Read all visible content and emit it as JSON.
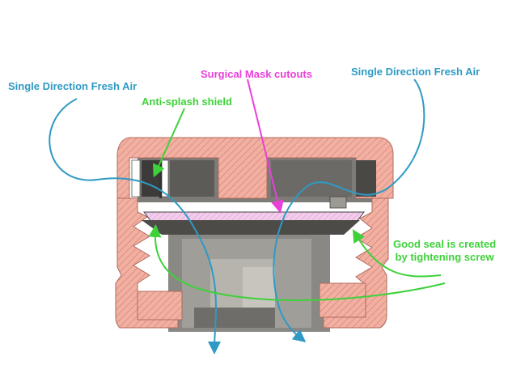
{
  "labels": {
    "fresh_air_left": "Single Direction Fresh Air",
    "fresh_air_right": "Single Direction Fresh Air",
    "mask_cutouts": "Surgical Mask cutouts",
    "anti_splash": "Anti-splash shield",
    "seal_line1": "Good seal is created",
    "seal_line2": "by tightening screw"
  },
  "colors": {
    "airflow": "#2f9ac4",
    "annotation_green": "#3ed13a",
    "mask_label": "#ea3fd9",
    "housing_fill": "#f0a898",
    "housing_hatch": "#c97466",
    "mask_layer": "#f0c3e8"
  }
}
